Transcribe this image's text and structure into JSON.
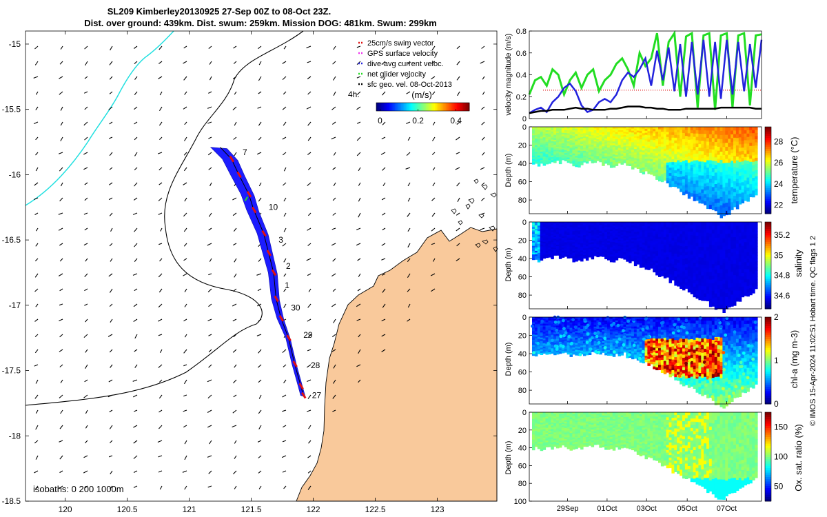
{
  "title": {
    "line1": "SL209 Kimberley20130925 27-Sep 00Z to 08-Oct 23Z.",
    "line2": "Dist. over ground: 439km. Dist. swum: 259km. Mission DOG: 481km. Swum: 299km"
  },
  "colors": {
    "land": "#f9c99b",
    "track_blue": "#1c1cff",
    "swim_red": "#e01010",
    "gps_magenta": "#ee33ee",
    "current_blue": "#2222dd",
    "net_green": "#22dd22",
    "sfc_black": "#000000",
    "isobath_cyan": "#22e0e0"
  },
  "map": {
    "x_ticks": [
      "120",
      "120.5",
      "121",
      "121.5",
      "122",
      "122.5",
      "123"
    ],
    "x_tick_values": [
      120,
      120.5,
      121,
      121.5,
      122,
      122.5,
      123
    ],
    "y_ticks": [
      "-15",
      "-15.5",
      "-16",
      "-16.5",
      "-17",
      "-17.5",
      "-18",
      "-18.5"
    ],
    "y_tick_values": [
      -15,
      -15.5,
      -16,
      -16.5,
      -17,
      -17.5,
      -18,
      -18.5
    ],
    "xlim": [
      119.68,
      123.48
    ],
    "ylim": [
      -18.5,
      -14.9
    ],
    "isobaths_label": "isobaths: 0   200  1000m",
    "scale_label": "4h.",
    "day_labels": [
      {
        "text": "7",
        "lon": 121.43,
        "lat": -15.85
      },
      {
        "text": "10",
        "lon": 121.64,
        "lat": -16.27
      },
      {
        "text": "3",
        "lon": 121.72,
        "lat": -16.52
      },
      {
        "text": "2",
        "lon": 121.78,
        "lat": -16.72
      },
      {
        "text": "1",
        "lon": 121.77,
        "lat": -16.87
      },
      {
        "text": "30",
        "lon": 121.82,
        "lat": -17.04
      },
      {
        "text": "29",
        "lon": 121.92,
        "lat": -17.25
      },
      {
        "text": "28",
        "lon": 121.98,
        "lat": -17.48
      },
      {
        "text": "27",
        "lon": 121.99,
        "lat": -17.71
      }
    ]
  },
  "legend": {
    "items": [
      {
        "label": "25cm/s swim vector",
        "color": "#e01010"
      },
      {
        "label": "GPS surface velocity",
        "color": "#ee33ee"
      },
      {
        "label": "dive-avg current veloc.",
        "color": "#2222dd"
      },
      {
        "label": "net glider velocity",
        "color": "#22dd22"
      },
      {
        "label": "sfc geo. vel. 08-Oct-2013",
        "color": "#000000"
      }
    ],
    "colorbar_title": "(m/s)",
    "colorbar_ticks": [
      "0",
      "0.2",
      "0.4"
    ],
    "colorbar_tick_values": [
      0,
      0.2,
      0.4
    ],
    "colorbar_range": [
      -0.02,
      0.47
    ]
  },
  "panels": {
    "x_ticks": [
      "29Sep",
      "01Oct",
      "03Oct",
      "05Oct",
      "07Oct"
    ],
    "velocity": {
      "ylabel": "velocity magnitude (m/s)",
      "y_ticks": [
        "0",
        "0.2",
        "0.4",
        "0.6",
        "0.8"
      ],
      "ylim": [
        0,
        0.8
      ]
    },
    "temperature": {
      "ylabel": "Depth (m)",
      "cbar_label": "temperature (°C)",
      "y_ticks": [
        "0",
        "20",
        "40",
        "60",
        "80"
      ],
      "cbar_ticks": [
        "22",
        "24",
        "26",
        "28"
      ],
      "cbar_tick_values": [
        22,
        24,
        26,
        28
      ],
      "cbar_range": [
        21.2,
        29.4
      ]
    },
    "salinity": {
      "ylabel": "Depth (m)",
      "cbar_label": "salinity",
      "y_ticks": [
        "0",
        "20",
        "40",
        "60",
        "80"
      ],
      "cbar_ticks": [
        "34.6",
        "34.8",
        "35",
        "35.2"
      ],
      "cbar_tick_values": [
        34.6,
        34.8,
        35,
        35.2
      ],
      "cbar_range": [
        34.47,
        35.33
      ]
    },
    "chla": {
      "ylabel": "Depth (m)",
      "cbar_label": "chl-a (mg m-3)",
      "y_ticks": [
        "0",
        "20",
        "40",
        "60",
        "80"
      ],
      "cbar_ticks": [
        "0",
        "1",
        "2"
      ],
      "cbar_tick_values": [
        0,
        1,
        2
      ],
      "cbar_range": [
        0,
        2
      ]
    },
    "oxygen": {
      "ylabel": "Depth (m)",
      "cbar_label": "Ox. sat. ratio (%)",
      "y_ticks": [
        "0",
        "20",
        "40",
        "60",
        "80",
        "100"
      ],
      "cbar_ticks": [
        "50",
        "100",
        "150"
      ],
      "cbar_tick_values": [
        50,
        100,
        150
      ],
      "cbar_range": [
        25,
        175
      ]
    }
  },
  "watermark": "© IMOS 15-Apr-2024 11:02:51 Hobart time. QC flags 1  2",
  "chart_data": [
    {
      "type": "line",
      "ylabel": "velocity magnitude (m/s)",
      "ylim": [
        0,
        0.8
      ],
      "x_ticks": [
        "29Sep",
        "01Oct",
        "03Oct",
        "05Oct",
        "07Oct"
      ],
      "series": [
        {
          "name": "net glider velocity",
          "color": "#22dd22",
          "values": [
            0.22,
            0.35,
            0.38,
            0.3,
            0.45,
            0.4,
            0.22,
            0.35,
            0.42,
            0.28,
            0.4,
            0.45,
            0.25,
            0.35,
            0.4,
            0.5,
            0.55,
            0.45,
            0.3,
            0.6,
            0.48,
            0.55,
            0.78,
            0.3,
            0.7,
            0.78,
            0.2,
            0.75,
            0.78,
            0.1,
            0.76,
            0.78,
            0.08,
            0.76,
            0.78,
            0.1,
            0.76,
            0.78,
            0.12,
            0.76,
            0.77
          ]
        },
        {
          "name": "dive-avg current veloc.",
          "color": "#2222dd",
          "values": [
            0.05,
            0.08,
            0.1,
            0.06,
            0.15,
            0.2,
            0.28,
            0.32,
            0.25,
            0.12,
            0.06,
            0.08,
            0.15,
            0.18,
            0.15,
            0.22,
            0.35,
            0.42,
            0.38,
            0.45,
            0.55,
            0.3,
            0.62,
            0.35,
            0.65,
            0.25,
            0.68,
            0.2,
            0.7,
            0.22,
            0.72,
            0.2,
            0.7,
            0.18,
            0.72,
            0.22,
            0.7,
            0.25,
            0.68,
            0.28,
            0.72
          ]
        },
        {
          "name": "sfc geo. vel. 08-Oct-2013",
          "color": "#000000",
          "values": [
            0.05,
            0.06,
            0.07,
            0.07,
            0.08,
            0.08,
            0.08,
            0.09,
            0.1,
            0.09,
            0.09,
            0.08,
            0.08,
            0.08,
            0.09,
            0.09,
            0.1,
            0.11,
            0.11,
            0.11,
            0.1,
            0.1,
            0.09,
            0.09,
            0.08,
            0.08,
            0.08,
            0.09,
            0.09,
            0.09,
            0.09,
            0.09,
            0.09,
            0.1,
            0.1,
            0.1,
            0.1,
            0.1,
            0.1,
            0.09,
            0.09
          ]
        }
      ]
    }
  ]
}
